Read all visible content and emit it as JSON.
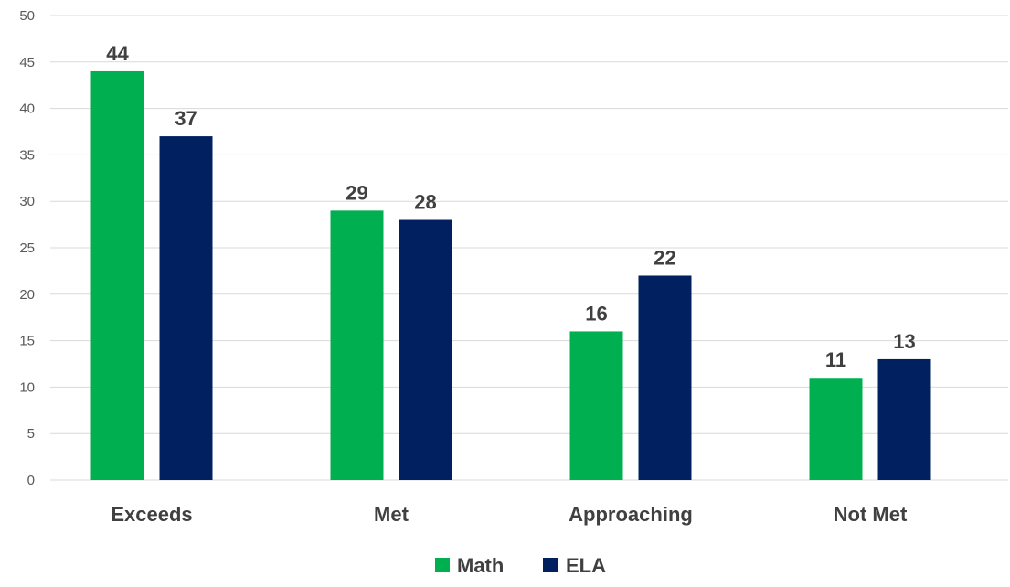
{
  "chart_data": {
    "type": "bar",
    "categories": [
      "Exceeds",
      "Met",
      "Approaching",
      "Not Met"
    ],
    "series": [
      {
        "name": "Math",
        "values": [
          44,
          29,
          16,
          11
        ],
        "color": "#00b050"
      },
      {
        "name": "ELA",
        "values": [
          37,
          28,
          22,
          13
        ],
        "color": "#002060"
      }
    ],
    "ylim": [
      0,
      50
    ],
    "yticks": [
      0,
      5,
      10,
      15,
      20,
      25,
      30,
      35,
      40,
      45,
      50
    ],
    "title": "",
    "xlabel": "",
    "ylabel": "",
    "grid": true,
    "legend_position": "bottom",
    "data_labels": true
  }
}
